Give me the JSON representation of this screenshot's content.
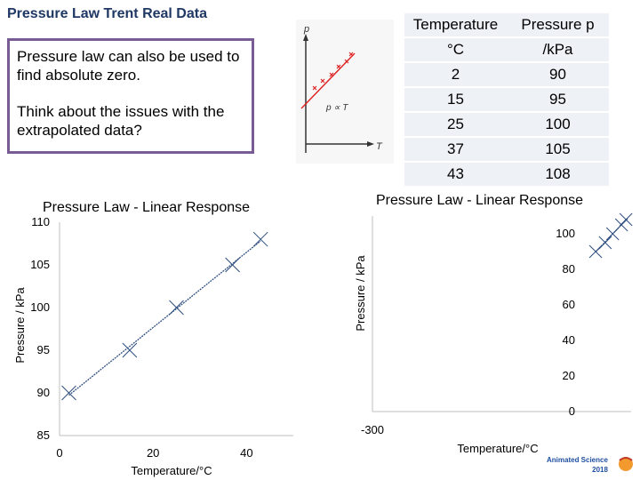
{
  "header": {
    "title": "Pressure Law Trent Real Data"
  },
  "note": {
    "line1": "Pressure law can also be used to find absolute zero.",
    "line2": "Think about the issues with the extrapolated data?"
  },
  "thumbnail": {
    "y_label": "p",
    "x_label": "T",
    "relation": "p ∝ T"
  },
  "table": {
    "col1_header_1": "Temperature",
    "col1_header_2": "°C",
    "col2_header_1": "Pressure  p",
    "col2_header_2": "/kPa",
    "rows": [
      {
        "t": "2",
        "p": "90"
      },
      {
        "t": "15",
        "p": "95"
      },
      {
        "t": "25",
        "p": "100"
      },
      {
        "t": "37",
        "p": "105"
      },
      {
        "t": "43",
        "p": "108"
      }
    ]
  },
  "colors": {
    "marker": "#2f4f7f",
    "title": "#1f3864",
    "frame": "#7a5c94",
    "table_bg": "#eef1f6"
  },
  "chart_data": [
    {
      "type": "scatter",
      "title": "Pressure Law - Linear Response",
      "xlabel": "Temperature/°C",
      "ylabel": "Pressure / kPa",
      "xlim": [
        0,
        50
      ],
      "ylim": [
        85,
        110
      ],
      "xticks": [
        0,
        20,
        40
      ],
      "yticks": [
        85,
        90,
        95,
        100,
        105,
        110
      ],
      "trendline": true,
      "grid": false,
      "series": [
        {
          "x": [
            2,
            15,
            25,
            37,
            43
          ],
          "y": [
            90,
            95,
            100,
            105,
            108
          ]
        }
      ]
    },
    {
      "type": "scatter",
      "title": "Pressure Law - Linear Response",
      "xlabel": "Temperature/°C",
      "ylabel": "Pressure / kPa",
      "xlim": [
        -300,
        50
      ],
      "ylim": [
        0,
        110
      ],
      "xticks": [
        -300
      ],
      "yticks": [
        0,
        20,
        40,
        60,
        80,
        100
      ],
      "trendline": true,
      "grid": false,
      "series": [
        {
          "x": [
            2,
            15,
            25,
            37,
            43
          ],
          "y": [
            90,
            95,
            100,
            105,
            108
          ]
        }
      ]
    }
  ],
  "brand": {
    "line1": "Animated Science",
    "line2": "2018"
  }
}
